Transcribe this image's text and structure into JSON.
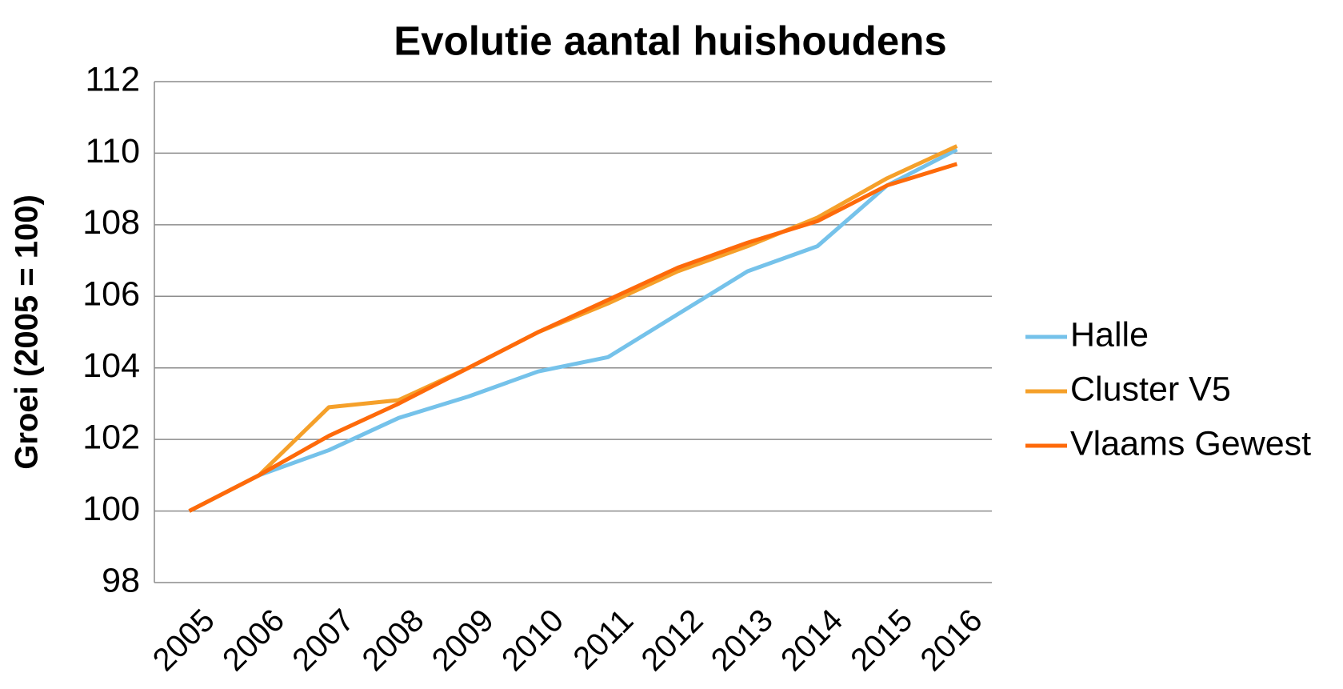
{
  "chart_data": {
    "type": "line",
    "title": "Evolutie aantal huishoudens",
    "y_label": "Groei (2005 = 100)",
    "categories": [
      "2005",
      "2006",
      "2007",
      "2008",
      "2009",
      "2010",
      "2011",
      "2012",
      "2013",
      "2014",
      "2015",
      "2016"
    ],
    "series": [
      {
        "name": "Halle",
        "color": "#75c2ea",
        "values": [
          100,
          101,
          101.7,
          102.6,
          103.2,
          103.9,
          104.3,
          105.5,
          106.7,
          107.4,
          109.1,
          110.1
        ]
      },
      {
        "name": "Cluster V5",
        "color": "#f5a02a",
        "values": [
          100,
          101,
          102.9,
          103.1,
          104,
          105,
          105.8,
          106.7,
          107.4,
          108.2,
          109.3,
          110.2
        ]
      },
      {
        "name": "Vlaams Gewest",
        "color": "#fe6a0a",
        "values": [
          100,
          101,
          102.1,
          103,
          104,
          105,
          105.9,
          106.8,
          107.5,
          108.1,
          109.1,
          109.7
        ]
      }
    ],
    "ylim": [
      98,
      112
    ],
    "yticks": [
      98,
      100,
      102,
      104,
      106,
      108,
      110,
      112
    ],
    "grid": true,
    "legend": "right"
  }
}
